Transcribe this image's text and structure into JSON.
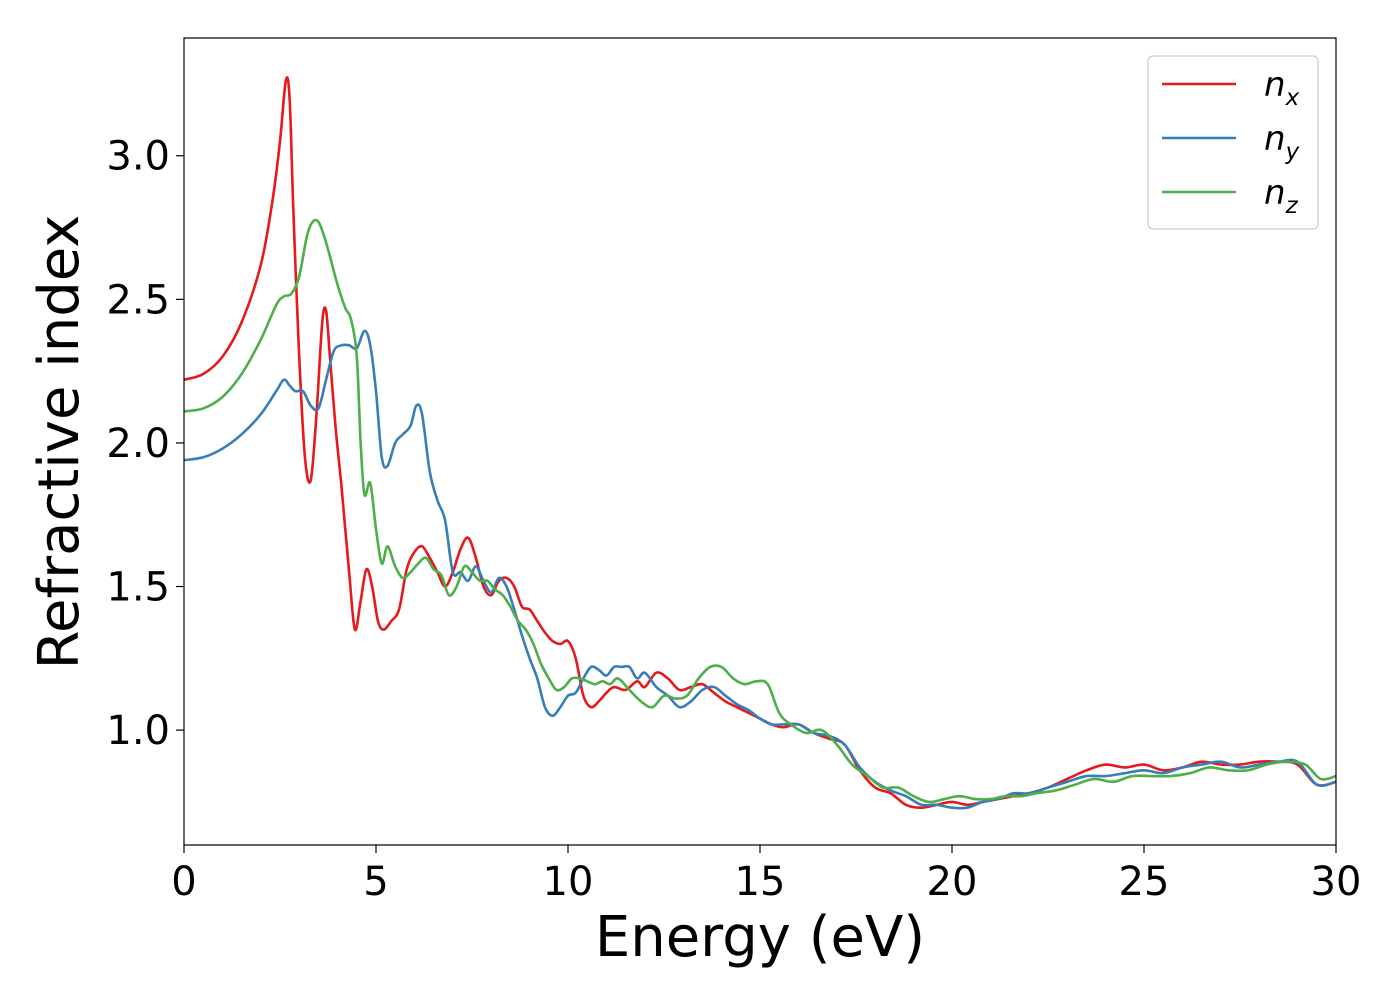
{
  "chart_data": {
    "type": "line",
    "title": "",
    "xlabel": "Energy (eV)",
    "ylabel": "Refractive index",
    "xlim": [
      0,
      30
    ],
    "ylim": [
      0.6,
      3.41
    ],
    "xticks": [
      0,
      5,
      10,
      15,
      20,
      25,
      30
    ],
    "xtick_labels": [
      "0",
      "5",
      "10",
      "15",
      "20",
      "25",
      "30"
    ],
    "yticks": [
      1.0,
      1.5,
      2.0,
      2.5,
      3.0
    ],
    "ytick_labels": [
      "1.0",
      "1.5",
      "2.0",
      "2.5",
      "3.0"
    ],
    "grid": false,
    "legend_position": "top-right",
    "series": [
      {
        "name": "n_x",
        "legend_base": "n",
        "legend_sub": "x",
        "color": "#e41a1c",
        "x": [
          0,
          0.5,
          1.0,
          1.5,
          2.0,
          2.3,
          2.5,
          2.65,
          2.75,
          2.85,
          3.0,
          3.15,
          3.3,
          3.45,
          3.6,
          3.7,
          3.8,
          3.95,
          4.1,
          4.3,
          4.45,
          4.6,
          4.75,
          4.9,
          5.05,
          5.2,
          5.4,
          5.6,
          5.8,
          6.0,
          6.2,
          6.4,
          6.6,
          6.8,
          7.0,
          7.2,
          7.4,
          7.6,
          7.8,
          8.0,
          8.2,
          8.4,
          8.6,
          8.8,
          9.0,
          9.2,
          9.4,
          9.6,
          9.8,
          10.0,
          10.2,
          10.4,
          10.6,
          10.8,
          11.0,
          11.2,
          11.5,
          11.8,
          12.0,
          12.3,
          12.6,
          12.9,
          13.2,
          13.5,
          13.8,
          14.1,
          14.4,
          14.7,
          15.0,
          15.3,
          15.6,
          16.0,
          16.4,
          16.8,
          17.2,
          17.6,
          18.0,
          18.4,
          18.8,
          19.2,
          19.6,
          20.0,
          20.4,
          20.8,
          21.2,
          21.6,
          22.0,
          22.5,
          23.0,
          23.5,
          24.0,
          24.5,
          25.0,
          25.5,
          26.0,
          26.5,
          27.0,
          27.5,
          28.0,
          28.5,
          29.0,
          29.5,
          30.0
        ],
        "y": [
          2.22,
          2.24,
          2.3,
          2.42,
          2.62,
          2.84,
          3.05,
          3.26,
          3.2,
          2.8,
          2.3,
          1.95,
          1.87,
          2.1,
          2.42,
          2.46,
          2.3,
          2.05,
          1.85,
          1.55,
          1.35,
          1.45,
          1.56,
          1.5,
          1.38,
          1.35,
          1.38,
          1.42,
          1.56,
          1.62,
          1.64,
          1.6,
          1.55,
          1.5,
          1.55,
          1.63,
          1.67,
          1.6,
          1.5,
          1.47,
          1.52,
          1.53,
          1.5,
          1.43,
          1.42,
          1.38,
          1.34,
          1.31,
          1.3,
          1.31,
          1.25,
          1.12,
          1.08,
          1.1,
          1.13,
          1.15,
          1.14,
          1.17,
          1.15,
          1.2,
          1.18,
          1.14,
          1.15,
          1.16,
          1.13,
          1.1,
          1.08,
          1.06,
          1.04,
          1.02,
          1.01,
          1.02,
          0.99,
          0.97,
          0.95,
          0.86,
          0.8,
          0.78,
          0.74,
          0.73,
          0.74,
          0.75,
          0.74,
          0.75,
          0.76,
          0.77,
          0.78,
          0.8,
          0.83,
          0.86,
          0.88,
          0.87,
          0.88,
          0.86,
          0.87,
          0.89,
          0.88,
          0.88,
          0.89,
          0.89,
          0.88,
          0.81,
          0.82
        ]
      },
      {
        "name": "n_y",
        "legend_base": "n",
        "legend_sub": "y",
        "color": "#377eb8",
        "x": [
          0,
          0.5,
          1.0,
          1.5,
          2.0,
          2.4,
          2.6,
          2.75,
          2.9,
          3.1,
          3.3,
          3.5,
          3.7,
          3.9,
          4.1,
          4.3,
          4.5,
          4.7,
          4.85,
          5.0,
          5.15,
          5.3,
          5.5,
          5.7,
          5.9,
          6.05,
          6.2,
          6.4,
          6.6,
          6.8,
          7.0,
          7.2,
          7.4,
          7.6,
          7.8,
          8.0,
          8.2,
          8.4,
          8.6,
          8.8,
          9.0,
          9.2,
          9.4,
          9.6,
          9.8,
          10.0,
          10.2,
          10.4,
          10.6,
          10.8,
          11.0,
          11.2,
          11.4,
          11.6,
          11.8,
          12.0,
          12.3,
          12.6,
          12.9,
          13.2,
          13.5,
          13.8,
          14.1,
          14.4,
          14.7,
          15.0,
          15.3,
          15.6,
          16.0,
          16.4,
          16.8,
          17.2,
          17.6,
          18.0,
          18.4,
          18.8,
          19.2,
          19.6,
          20.0,
          20.4,
          20.8,
          21.2,
          21.6,
          22.0,
          22.5,
          23.0,
          23.5,
          24.0,
          24.5,
          25.0,
          25.5,
          26.0,
          26.5,
          27.0,
          27.5,
          28.0,
          28.5,
          29.0,
          29.5,
          30.0
        ],
        "y": [
          1.94,
          1.95,
          1.98,
          2.03,
          2.1,
          2.18,
          2.22,
          2.2,
          2.18,
          2.18,
          2.13,
          2.12,
          2.22,
          2.32,
          2.34,
          2.34,
          2.33,
          2.39,
          2.34,
          2.18,
          1.95,
          1.92,
          2.0,
          2.03,
          2.06,
          2.13,
          2.1,
          1.9,
          1.8,
          1.73,
          1.55,
          1.55,
          1.52,
          1.57,
          1.52,
          1.48,
          1.53,
          1.5,
          1.42,
          1.33,
          1.25,
          1.18,
          1.08,
          1.05,
          1.08,
          1.12,
          1.13,
          1.18,
          1.22,
          1.21,
          1.19,
          1.22,
          1.22,
          1.22,
          1.18,
          1.2,
          1.15,
          1.12,
          1.08,
          1.1,
          1.14,
          1.15,
          1.12,
          1.09,
          1.07,
          1.04,
          1.02,
          1.02,
          1.02,
          0.99,
          0.98,
          0.95,
          0.87,
          0.82,
          0.79,
          0.77,
          0.74,
          0.74,
          0.73,
          0.73,
          0.75,
          0.76,
          0.78,
          0.78,
          0.8,
          0.82,
          0.84,
          0.84,
          0.85,
          0.86,
          0.85,
          0.87,
          0.88,
          0.89,
          0.87,
          0.88,
          0.89,
          0.89,
          0.81,
          0.82
        ]
      },
      {
        "name": "n_z",
        "legend_base": "n",
        "legend_sub": "z",
        "color": "#4daf4a",
        "x": [
          0,
          0.5,
          1.0,
          1.5,
          2.0,
          2.4,
          2.6,
          2.8,
          3.0,
          3.2,
          3.35,
          3.5,
          3.65,
          3.8,
          4.0,
          4.2,
          4.35,
          4.5,
          4.6,
          4.7,
          4.85,
          5.0,
          5.15,
          5.3,
          5.5,
          5.7,
          5.9,
          6.1,
          6.3,
          6.5,
          6.7,
          6.9,
          7.1,
          7.3,
          7.5,
          7.7,
          7.9,
          8.1,
          8.3,
          8.5,
          8.7,
          8.9,
          9.1,
          9.3,
          9.5,
          9.7,
          9.9,
          10.1,
          10.3,
          10.5,
          10.7,
          10.9,
          11.1,
          11.3,
          11.6,
          11.9,
          12.2,
          12.5,
          12.8,
          13.1,
          13.4,
          13.7,
          14.0,
          14.3,
          14.6,
          14.9,
          15.2,
          15.5,
          15.8,
          16.2,
          16.6,
          17.0,
          17.4,
          17.8,
          18.2,
          18.6,
          19.0,
          19.4,
          19.8,
          20.2,
          20.6,
          21.0,
          21.4,
          21.8,
          22.2,
          22.7,
          23.2,
          23.7,
          24.2,
          24.7,
          25.2,
          25.7,
          26.2,
          26.7,
          27.2,
          27.7,
          28.2,
          28.7,
          29.2,
          29.6,
          30.0
        ],
        "y": [
          2.11,
          2.12,
          2.16,
          2.24,
          2.36,
          2.48,
          2.51,
          2.52,
          2.58,
          2.72,
          2.77,
          2.77,
          2.72,
          2.65,
          2.55,
          2.47,
          2.43,
          2.3,
          2.0,
          1.82,
          1.86,
          1.7,
          1.58,
          1.64,
          1.57,
          1.53,
          1.55,
          1.58,
          1.6,
          1.56,
          1.54,
          1.47,
          1.5,
          1.57,
          1.55,
          1.52,
          1.52,
          1.49,
          1.47,
          1.43,
          1.38,
          1.35,
          1.3,
          1.23,
          1.18,
          1.14,
          1.15,
          1.18,
          1.18,
          1.17,
          1.16,
          1.17,
          1.16,
          1.18,
          1.14,
          1.1,
          1.08,
          1.12,
          1.11,
          1.12,
          1.18,
          1.22,
          1.22,
          1.18,
          1.16,
          1.17,
          1.16,
          1.06,
          1.02,
          0.99,
          1.0,
          0.95,
          0.88,
          0.84,
          0.8,
          0.8,
          0.77,
          0.75,
          0.76,
          0.77,
          0.76,
          0.76,
          0.77,
          0.77,
          0.78,
          0.79,
          0.81,
          0.83,
          0.82,
          0.84,
          0.84,
          0.84,
          0.85,
          0.87,
          0.86,
          0.86,
          0.88,
          0.89,
          0.88,
          0.83,
          0.84
        ]
      }
    ]
  }
}
